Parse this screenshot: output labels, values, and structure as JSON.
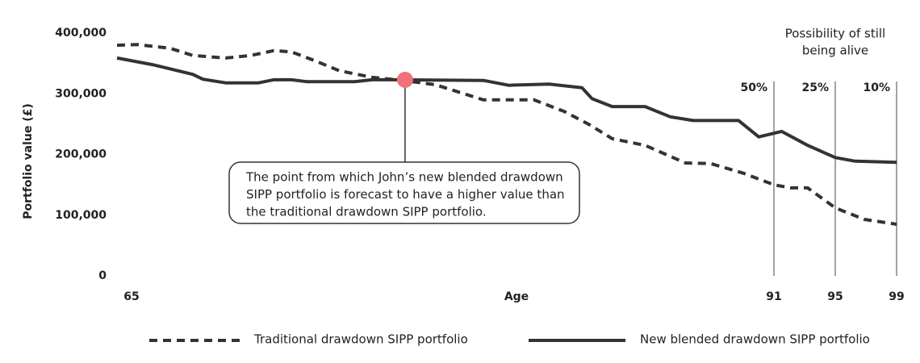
{
  "chart_data": {
    "type": "line",
    "ylabel": "Portfolio value (£)",
    "xlabel": "Age",
    "xlim": [
      65,
      99
    ],
    "xticks": [
      65,
      91,
      95,
      99
    ],
    "ylim": [
      0,
      400000
    ],
    "yticks": [
      0,
      {
        "value": 100000,
        "label": "100,000"
      },
      {
        "value": 200000,
        "label": "200,000"
      },
      {
        "value": 300000,
        "label": "300,000"
      },
      {
        "value": 400000,
        "label": "400,000"
      }
    ],
    "grid": false,
    "series": [
      {
        "name": "Traditional drawdown SIPP portfolio",
        "color": "#333333",
        "dash": true,
        "x": [
          65,
          65.8,
          67.1,
          68.0,
          69.3,
          70.3,
          71.2,
          71.9,
          72.8,
          73.8,
          75.1,
          76.3,
          77.6,
          79.5,
          81.5,
          82.7,
          83.7,
          84.6,
          85.9,
          87.5,
          88.5,
          89.8,
          91,
          92.1,
          93.2,
          95,
          96.9,
          99
        ],
        "values": [
          380000,
          381000,
          375000,
          363000,
          359000,
          363000,
          371000,
          369000,
          355000,
          338000,
          327000,
          322000,
          315000,
          290000,
          290000,
          271000,
          249000,
          226000,
          215000,
          186000,
          185000,
          169000,
          150000,
          145000,
          145000,
          112000,
          93000,
          85000
        ]
      },
      {
        "name": "New blended drawdown SIPP portfolio",
        "color": "#333333",
        "dash": false,
        "x": [
          65,
          66.4,
          68.0,
          68.4,
          69.3,
          70.6,
          71.2,
          71.9,
          72.5,
          74.4,
          75.1,
          76.3,
          79.5,
          80.5,
          82.1,
          83.4,
          83.8,
          84.6,
          85.9,
          86.9,
          87.8,
          89.6,
          90.4,
          91.5,
          93.2,
          95,
          96.3,
          99
        ],
        "values": [
          359000,
          348000,
          332000,
          324000,
          318000,
          318000,
          323000,
          323000,
          320000,
          320000,
          323000,
          323000,
          322000,
          314000,
          316000,
          310000,
          292000,
          279000,
          279000,
          262000,
          256000,
          256000,
          229000,
          238000,
          215000,
          195000,
          189000,
          187000
        ]
      }
    ],
    "crossover": {
      "x": 76.4,
      "y": 323000,
      "color": "#f07178",
      "text": [
        "The point from which John’s new blended drawdown",
        "SIPP portfolio is forecast to have a higher value than",
        "the traditional drawdown SIPP portfolio."
      ]
    },
    "survival": {
      "title": [
        "Possibility of still",
        "being alive"
      ],
      "ages": [
        91,
        95,
        99
      ],
      "labels": [
        "50%",
        "25%",
        "10%"
      ]
    }
  }
}
